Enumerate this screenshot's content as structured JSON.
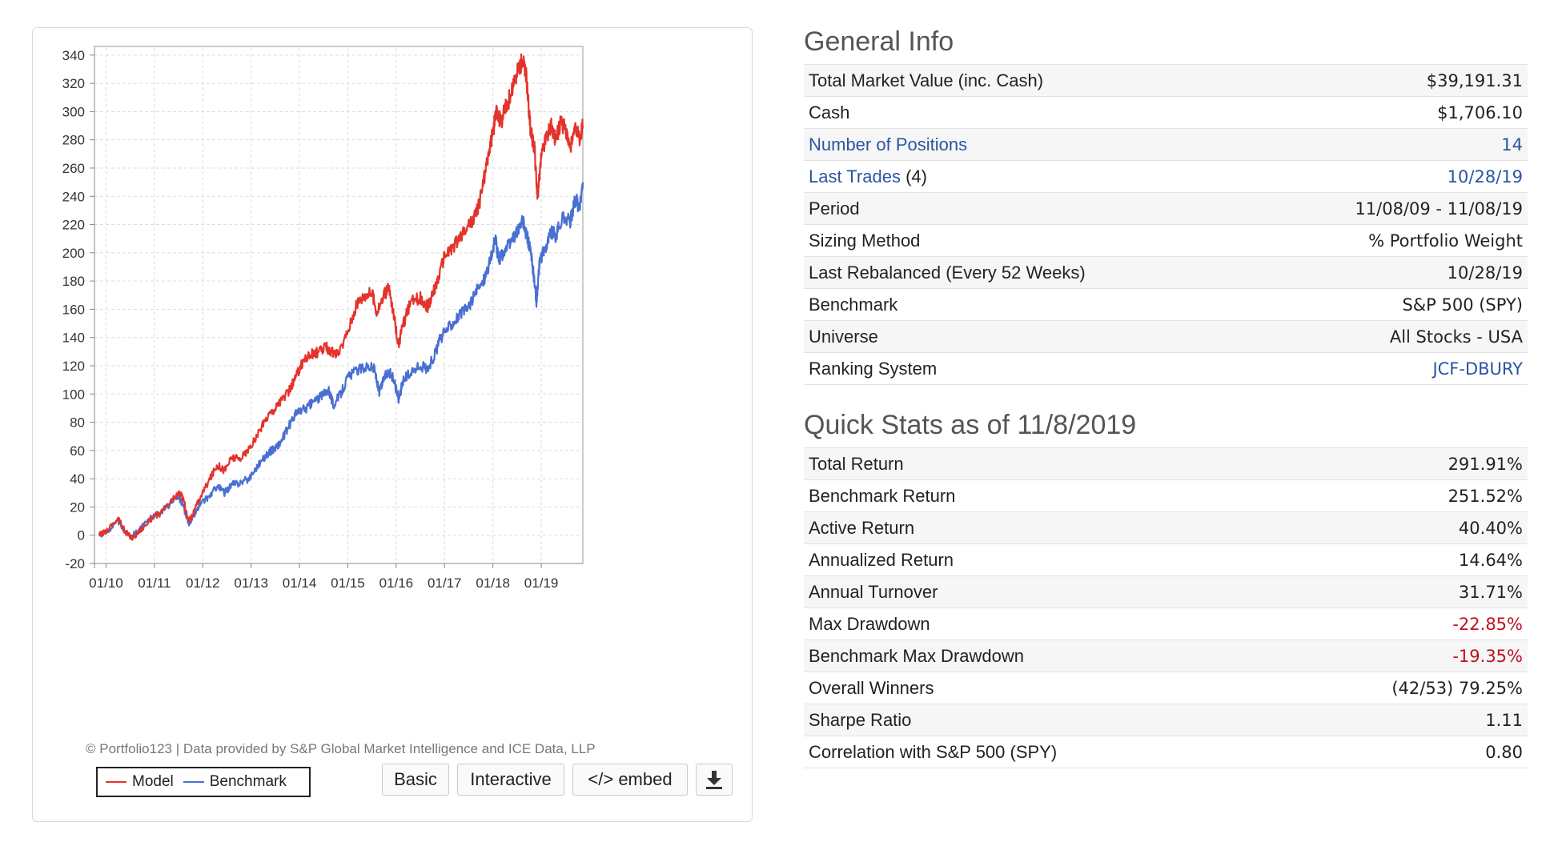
{
  "chart_data": {
    "type": "line",
    "x_tick_labels": [
      "01/10",
      "01/11",
      "01/12",
      "01/13",
      "01/14",
      "01/15",
      "01/16",
      "01/17",
      "01/18",
      "01/19"
    ],
    "y_ticks": [
      -20,
      0,
      20,
      40,
      60,
      80,
      100,
      120,
      140,
      160,
      180,
      200,
      220,
      240,
      260,
      280,
      300,
      320,
      340
    ],
    "ylim": [
      -20,
      345
    ],
    "xlim": [
      2010.0,
      2019.86
    ],
    "grid": true,
    "legend_position": "bottom-left",
    "series": [
      {
        "name": "Model",
        "color": "#e3332b",
        "points": [
          [
            2009.86,
            0
          ],
          [
            2010.0,
            3
          ],
          [
            2010.25,
            12
          ],
          [
            2010.4,
            2
          ],
          [
            2010.55,
            -2
          ],
          [
            2010.75,
            5
          ],
          [
            2010.95,
            12
          ],
          [
            2011.15,
            16
          ],
          [
            2011.35,
            24
          ],
          [
            2011.5,
            30
          ],
          [
            2011.6,
            26
          ],
          [
            2011.7,
            10
          ],
          [
            2011.8,
            15
          ],
          [
            2011.95,
            27
          ],
          [
            2012.15,
            40
          ],
          [
            2012.3,
            50
          ],
          [
            2012.45,
            46
          ],
          [
            2012.6,
            55
          ],
          [
            2012.75,
            54
          ],
          [
            2012.95,
            60
          ],
          [
            2013.15,
            72
          ],
          [
            2013.35,
            85
          ],
          [
            2013.5,
            90
          ],
          [
            2013.6,
            95
          ],
          [
            2013.75,
            100
          ],
          [
            2013.9,
            110
          ],
          [
            2014.0,
            118
          ],
          [
            2014.1,
            125
          ],
          [
            2014.25,
            128
          ],
          [
            2014.4,
            130
          ],
          [
            2014.55,
            133
          ],
          [
            2014.65,
            130
          ],
          [
            2014.8,
            127
          ],
          [
            2015.0,
            145
          ],
          [
            2015.2,
            165
          ],
          [
            2015.35,
            170
          ],
          [
            2015.5,
            172
          ],
          [
            2015.6,
            158
          ],
          [
            2015.75,
            170
          ],
          [
            2015.85,
            175
          ],
          [
            2015.95,
            155
          ],
          [
            2016.05,
            135
          ],
          [
            2016.15,
            150
          ],
          [
            2016.3,
            165
          ],
          [
            2016.5,
            168
          ],
          [
            2016.65,
            162
          ],
          [
            2016.75,
            170
          ],
          [
            2016.85,
            180
          ],
          [
            2017.0,
            198
          ],
          [
            2017.2,
            205
          ],
          [
            2017.4,
            215
          ],
          [
            2017.6,
            224
          ],
          [
            2017.7,
            232
          ],
          [
            2017.8,
            250
          ],
          [
            2017.9,
            268
          ],
          [
            2018.0,
            285
          ],
          [
            2018.08,
            302
          ],
          [
            2018.16,
            292
          ],
          [
            2018.25,
            302
          ],
          [
            2018.35,
            310
          ],
          [
            2018.45,
            322
          ],
          [
            2018.55,
            332
          ],
          [
            2018.62,
            336
          ],
          [
            2018.7,
            322
          ],
          [
            2018.78,
            285
          ],
          [
            2018.86,
            275
          ],
          [
            2018.92,
            238
          ],
          [
            2019.0,
            268
          ],
          [
            2019.1,
            282
          ],
          [
            2019.2,
            290
          ],
          [
            2019.3,
            280
          ],
          [
            2019.4,
            292
          ],
          [
            2019.5,
            288
          ],
          [
            2019.6,
            274
          ],
          [
            2019.7,
            286
          ],
          [
            2019.8,
            282
          ],
          [
            2019.86,
            290
          ]
        ]
      },
      {
        "name": "Benchmark",
        "color": "#4a6fd2",
        "points": [
          [
            2009.86,
            0
          ],
          [
            2010.0,
            2
          ],
          [
            2010.25,
            10
          ],
          [
            2010.4,
            2
          ],
          [
            2010.55,
            0
          ],
          [
            2010.75,
            6
          ],
          [
            2010.95,
            13
          ],
          [
            2011.15,
            17
          ],
          [
            2011.35,
            23
          ],
          [
            2011.5,
            28
          ],
          [
            2011.6,
            20
          ],
          [
            2011.7,
            8
          ],
          [
            2011.8,
            13
          ],
          [
            2011.95,
            22
          ],
          [
            2012.15,
            28
          ],
          [
            2012.3,
            35
          ],
          [
            2012.45,
            30
          ],
          [
            2012.6,
            36
          ],
          [
            2012.75,
            37
          ],
          [
            2012.95,
            40
          ],
          [
            2013.15,
            50
          ],
          [
            2013.35,
            58
          ],
          [
            2013.5,
            62
          ],
          [
            2013.6,
            65
          ],
          [
            2013.75,
            75
          ],
          [
            2013.9,
            85
          ],
          [
            2014.0,
            88
          ],
          [
            2014.15,
            90
          ],
          [
            2014.3,
            95
          ],
          [
            2014.45,
            98
          ],
          [
            2014.6,
            104
          ],
          [
            2014.7,
            92
          ],
          [
            2014.85,
            100
          ],
          [
            2015.0,
            112
          ],
          [
            2015.2,
            117
          ],
          [
            2015.4,
            120
          ],
          [
            2015.55,
            118
          ],
          [
            2015.65,
            100
          ],
          [
            2015.75,
            112
          ],
          [
            2015.85,
            116
          ],
          [
            2015.95,
            110
          ],
          [
            2016.05,
            97
          ],
          [
            2016.15,
            110
          ],
          [
            2016.3,
            115
          ],
          [
            2016.5,
            120
          ],
          [
            2016.65,
            118
          ],
          [
            2016.8,
            128
          ],
          [
            2016.9,
            138
          ],
          [
            2017.05,
            146
          ],
          [
            2017.2,
            152
          ],
          [
            2017.35,
            157
          ],
          [
            2017.5,
            162
          ],
          [
            2017.65,
            172
          ],
          [
            2017.8,
            180
          ],
          [
            2017.95,
            195
          ],
          [
            2018.05,
            210
          ],
          [
            2018.12,
            195
          ],
          [
            2018.22,
            200
          ],
          [
            2018.35,
            206
          ],
          [
            2018.5,
            215
          ],
          [
            2018.62,
            222
          ],
          [
            2018.72,
            210
          ],
          [
            2018.78,
            200
          ],
          [
            2018.84,
            185
          ],
          [
            2018.9,
            165
          ],
          [
            2018.97,
            195
          ],
          [
            2019.1,
            205
          ],
          [
            2019.2,
            215
          ],
          [
            2019.3,
            212
          ],
          [
            2019.45,
            225
          ],
          [
            2019.6,
            222
          ],
          [
            2019.7,
            238
          ],
          [
            2019.8,
            232
          ],
          [
            2019.86,
            250
          ]
        ]
      }
    ]
  },
  "chart_credit": "© Portfolio123 | Data provided by S&P Global Market Intelligence and ICE Data, LLP",
  "legend": {
    "model_label": "Model",
    "benchmark_label": "Benchmark"
  },
  "toolbar": {
    "basic_label": "Basic",
    "interactive_label": "Interactive",
    "embed_label": "</> embed",
    "download_icon": "download-icon"
  },
  "general_info": {
    "title": "General Info",
    "rows": [
      {
        "label": "Total Market Value (inc. Cash)",
        "value": "$39,191.31"
      },
      {
        "label": "Cash",
        "value": "$1,706.10"
      },
      {
        "label": "Number of Positions",
        "value": "14"
      },
      {
        "label": "Last Trades",
        "label_suffix": " (4)",
        "value": "10/28/19"
      },
      {
        "label": "Period",
        "value": "11/08/09 - 11/08/19"
      },
      {
        "label": "Sizing Method",
        "value": "% Portfolio Weight"
      },
      {
        "label": "Last Rebalanced (Every 52 Weeks)",
        "value": "10/28/19"
      },
      {
        "label": "Benchmark",
        "value": "S&P 500 (SPY)"
      },
      {
        "label": "Universe",
        "value": "All Stocks - USA"
      },
      {
        "label": "Ranking System",
        "value": "JCF-DBURY"
      }
    ]
  },
  "quick_stats": {
    "title": "Quick Stats as of 11/8/2019",
    "rows": [
      {
        "label": "Total Return",
        "value": "291.91%"
      },
      {
        "label": "Benchmark Return",
        "value": "251.52%"
      },
      {
        "label": "Active Return",
        "value": "40.40%"
      },
      {
        "label": "Annualized Return",
        "value": "14.64%"
      },
      {
        "label": "Annual Turnover",
        "value": "31.71%"
      },
      {
        "label": "Max Drawdown",
        "value": "-22.85%"
      },
      {
        "label": "Benchmark Max Drawdown",
        "value": "-19.35%"
      },
      {
        "label": "Overall Winners",
        "value": "(42/53) 79.25%"
      },
      {
        "label": "Sharpe Ratio",
        "value": "1.11"
      },
      {
        "label": "Correlation with S&P 500 (SPY)",
        "value": "0.80"
      }
    ]
  },
  "colors": {
    "link": "#2a55a0",
    "negative": "#c0121b",
    "model": "#e3332b",
    "benchmark": "#4a6fd2"
  }
}
